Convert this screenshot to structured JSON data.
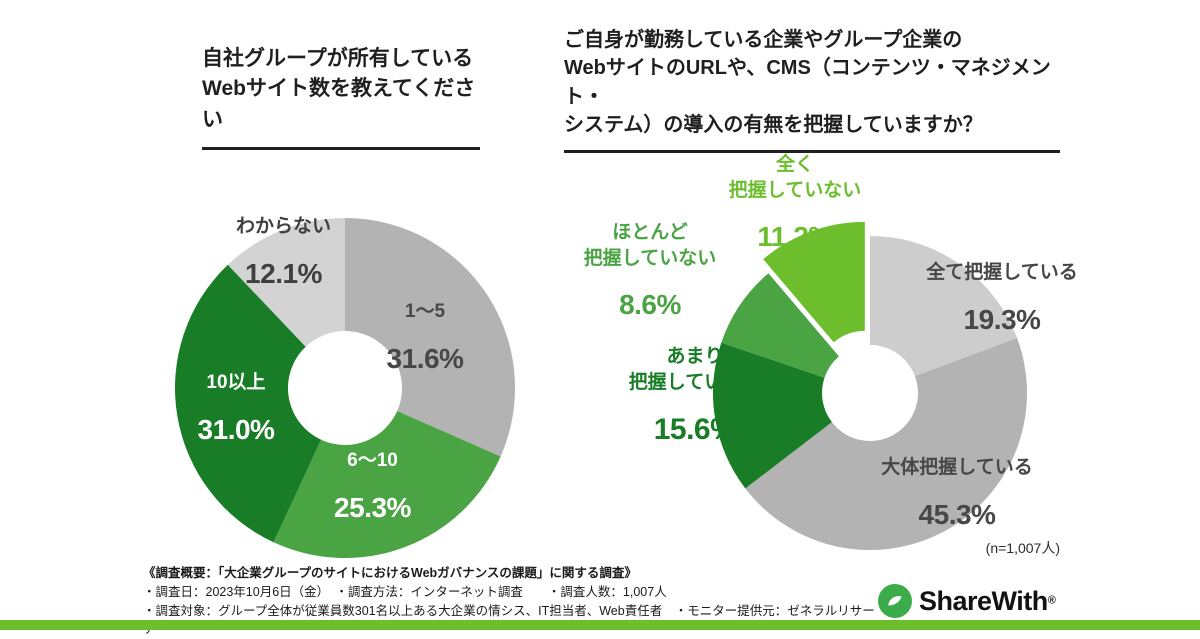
{
  "page": {
    "background": "#ffffff",
    "accent_bar_color": "#6cbe2d"
  },
  "chart_data": [
    {
      "type": "pie",
      "style": "donut",
      "title": "自社グループが所有している\nWebサイト数を教えてください",
      "legend_position": "labels-on-chart",
      "slices": [
        {
          "label": "1〜5",
          "value": 31.6,
          "pct_label": "31.6%",
          "color": "#b3b3b3"
        },
        {
          "label": "6〜10",
          "value": 25.3,
          "pct_label": "25.3%",
          "color": "#4ba443"
        },
        {
          "label": "10以上",
          "value": 31.0,
          "pct_label": "31.0%",
          "color": "#187d26"
        },
        {
          "label": "わからない",
          "value": 12.1,
          "pct_label": "12.1%",
          "color": "#d3d3d3"
        }
      ]
    },
    {
      "type": "pie",
      "style": "donut",
      "title": "ご自身が勤務している企業やグループ企業の\nWebサイトのURLや、CMS（コンテンツ・マネジメント・\nシステム）の導入の有無を把握していますか？",
      "legend_position": "labels-on-chart",
      "slices": [
        {
          "label": "全て把握している",
          "value": 19.3,
          "pct_label": "19.3%",
          "color": "#cdcdcd"
        },
        {
          "label": "大体把握している",
          "value": 45.3,
          "pct_label": "45.3%",
          "color": "#b3b3b3"
        },
        {
          "label": "あまり\n把握していない",
          "value": 15.6,
          "pct_label": "15.6%",
          "color": "#187d26"
        },
        {
          "label": "ほとんど\n把握していない",
          "value": 8.6,
          "pct_label": "8.6%",
          "color": "#4ba443"
        },
        {
          "label": "全く\n把握していない",
          "value": 11.2,
          "pct_label": "11.2%",
          "color": "#6cbe2d",
          "exploded": true
        }
      ]
    }
  ],
  "footnote": {
    "n_label": "(n=1,007人)",
    "summary": "《調査概要：「大企業グループのサイトにおけるWebガバナンスの課題」に関する調査》",
    "line1": "・調査日：2023年10月6日（金）　・調査方法：インターネット調査　　・調査人数：1,007人",
    "line2": "・調査対象：グループ全体が従業員数301名以上ある大企業の情シス、IT担当者、Web責任者　・モニター提供元：ゼネラルリサーチ"
  },
  "brand": {
    "name": "ShareWith",
    "reg": "®",
    "logo_color": "#3cab4a"
  }
}
